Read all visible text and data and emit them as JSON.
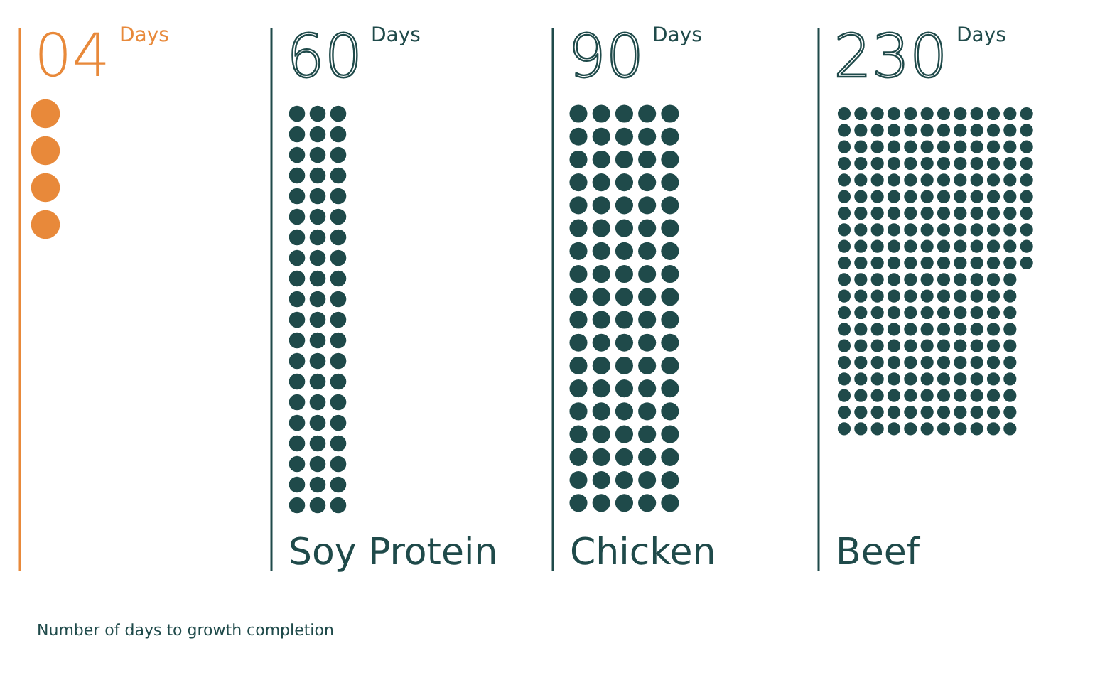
{
  "chart_data": {
    "type": "other",
    "categories": [
      null,
      "Soy Protein",
      "Chicken",
      "Beef"
    ],
    "values": [
      4,
      60,
      90,
      230
    ],
    "value_labels": [
      "04",
      "60",
      "90",
      "230"
    ],
    "colors": [
      "#e8893a",
      "#1f4a4a",
      "#1f4a4a",
      "#1f4a4a"
    ],
    "ylabel": "Days",
    "annotations": [
      "Number of days to growth completion"
    ]
  }
}
